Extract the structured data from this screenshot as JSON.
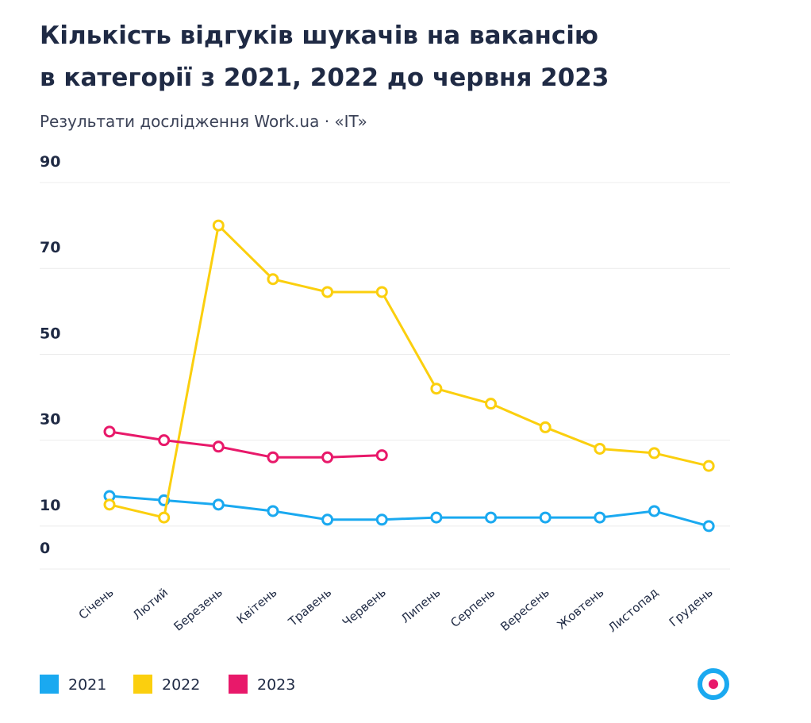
{
  "chart_data": {
    "type": "line",
    "title": "Кількість відгуків шукачів на вакансію",
    "title_line2": "в категорії з 2021, 2022 до червня 2023",
    "subtitle": "Результати дослідження Work.ua · «IT»",
    "categories": [
      "Січень",
      "Лютий",
      "Березень",
      "Квітень",
      "Травень",
      "Червень",
      "Липень",
      "Серпень",
      "Вересень",
      "Жовтень",
      "Листопад",
      "Грудень"
    ],
    "series": [
      {
        "name": "2021",
        "color": "#1aa9f0",
        "values": [
          17,
          16,
          15,
          13.5,
          11.5,
          11.5,
          12,
          12,
          12,
          12,
          13.5,
          10
        ]
      },
      {
        "name": "2022",
        "color": "#fbcf0e",
        "values": [
          15,
          12,
          80,
          67.5,
          64.5,
          64.5,
          42,
          38.5,
          33,
          28,
          27,
          24
        ]
      },
      {
        "name": "2023",
        "color": "#e8196a",
        "values": [
          32,
          30,
          28.5,
          26,
          26,
          26.5,
          null,
          null,
          null,
          null,
          null,
          null
        ]
      }
    ],
    "ylim": [
      0,
      90
    ],
    "yticks": [
      0,
      10,
      30,
      50,
      70,
      90
    ],
    "grid": true
  }
}
